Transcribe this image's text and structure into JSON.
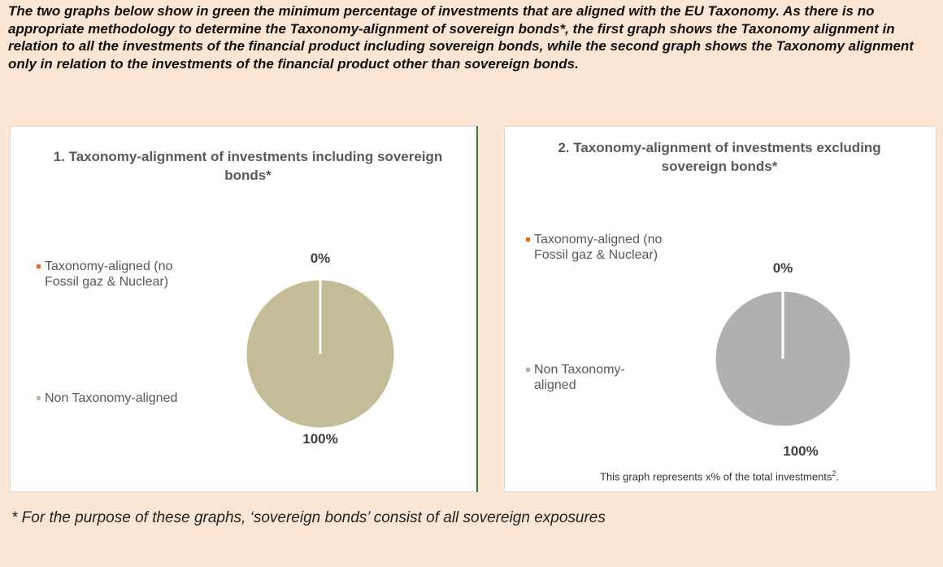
{
  "intro": "The two graphs below show in green the minimum percentage of investments that are aligned with the EU Taxonomy. As there is no appropriate methodology to determine the Taxonomy-alignment of sovereign bonds*, the first graph shows the Taxonomy alignment in relation to all the investments of the financial product including sovereign bonds, while the second graph shows the Taxonomy alignment only in relation to the investments of the financial product other than sovereign bonds.",
  "chart_data": [
    {
      "type": "pie",
      "title": "1. Taxonomy-alignment of investments including sovereign bonds*",
      "categories": [
        "Taxonomy-aligned (no Fossil gaz & Nuclear)",
        "Non Taxonomy-aligned"
      ],
      "values": [
        0,
        100
      ],
      "value_labels": [
        "0%",
        "100%"
      ],
      "colors": [
        "#e46c1f",
        "#c4bc96"
      ]
    },
    {
      "type": "pie",
      "title": "2. Taxonomy-alignment of investments excluding sovereign bonds*",
      "categories": [
        "Taxonomy-aligned (no Fossil gaz & Nuclear)",
        "Non Taxonomy-aligned"
      ],
      "values": [
        0,
        100
      ],
      "value_labels": [
        "0%",
        "100%"
      ],
      "colors": [
        "#e46c1f",
        "#b0b0b0"
      ],
      "note": [
        "This graph represents x% of the total investments",
        "2",
        "."
      ]
    }
  ],
  "footnote": "* For the purpose of these graphs, ‘sovereign bonds’ consist of all sovereign exposures"
}
